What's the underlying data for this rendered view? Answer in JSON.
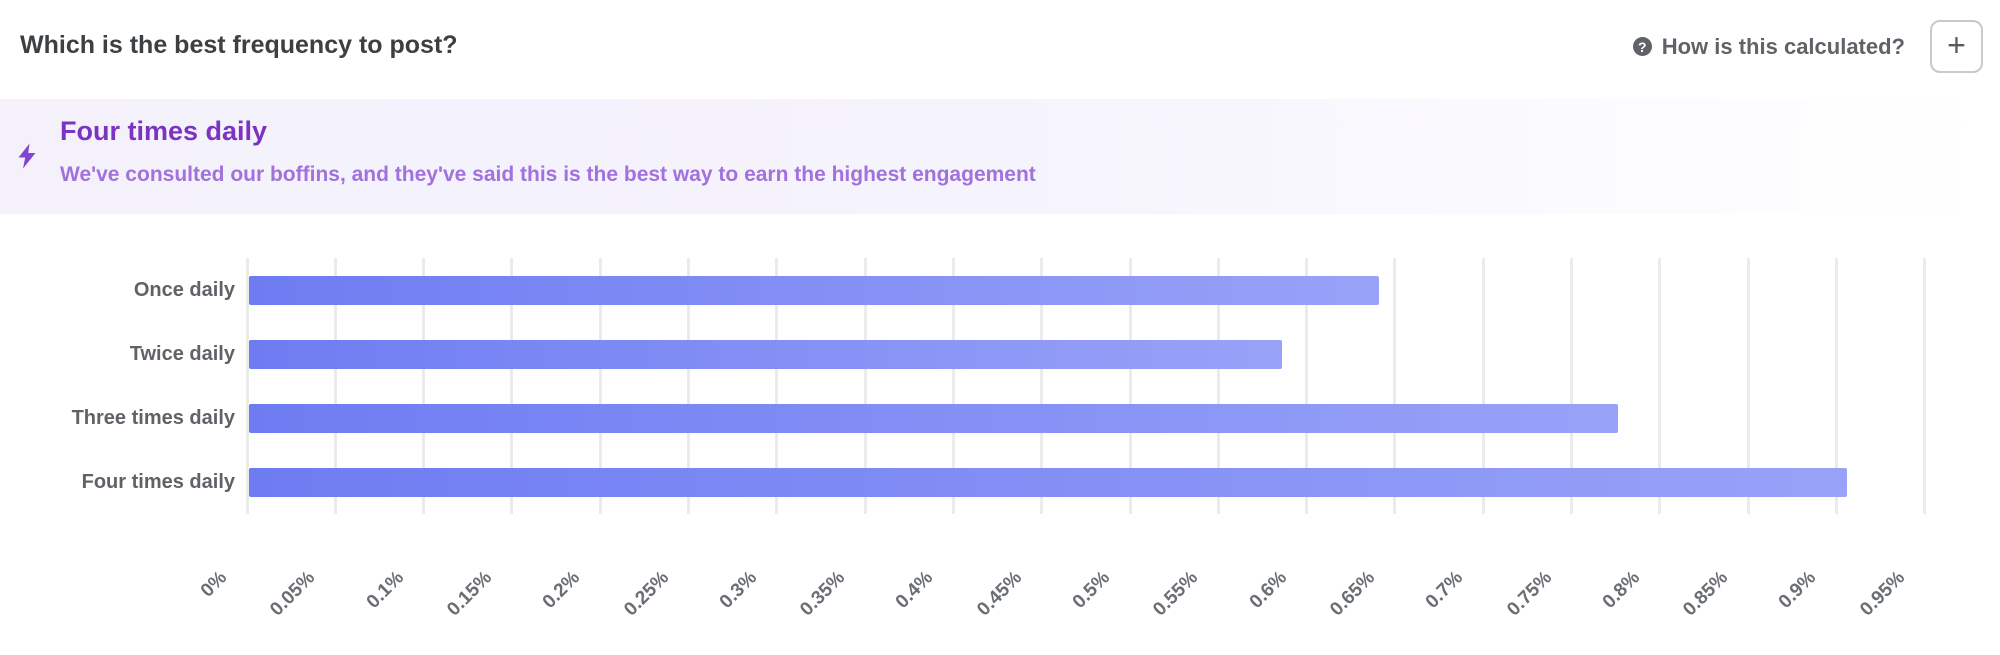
{
  "header": {
    "title": "Which is the best frequency to post?",
    "help_label": "How is this calculated?",
    "add_button_label": "+"
  },
  "recommendation_banner": {
    "title": "Four times daily",
    "subtitle": "We've consulted our boffins, and they've said this is the best way to earn the highest engagement",
    "title_color": "#7b33c2",
    "subtitle_color": "#a171dc",
    "icon": "lightning-bolt-icon",
    "icon_color": "#8344d3",
    "background_color": "#f4f1fb"
  },
  "chart_data": {
    "type": "bar",
    "orientation": "horizontal",
    "title": "",
    "xlabel": "",
    "ylabel": "",
    "unit": "%",
    "categories": [
      "Once daily",
      "Twice daily",
      "Three times daily",
      "Four times daily"
    ],
    "values": [
      0.64,
      0.585,
      0.775,
      0.905
    ],
    "x_ticks": [
      "0%",
      "0.05%",
      "0.1%",
      "0.15%",
      "0.2%",
      "0.25%",
      "0.3%",
      "0.35%",
      "0.4%",
      "0.45%",
      "0.5%",
      "0.55%",
      "0.6%",
      "0.65%",
      "0.7%",
      "0.75%",
      "0.8%",
      "0.85%",
      "0.9%",
      "0.95%"
    ],
    "x_tick_step": 0.05,
    "xlim": [
      0,
      0.97
    ],
    "grid": true,
    "tick_rotation_deg": -45,
    "bar_color_start": "#6e7cf2",
    "bar_color_end": "#99a2f8",
    "gridline_color": "#ebebeb",
    "best_category": "Four times daily"
  }
}
